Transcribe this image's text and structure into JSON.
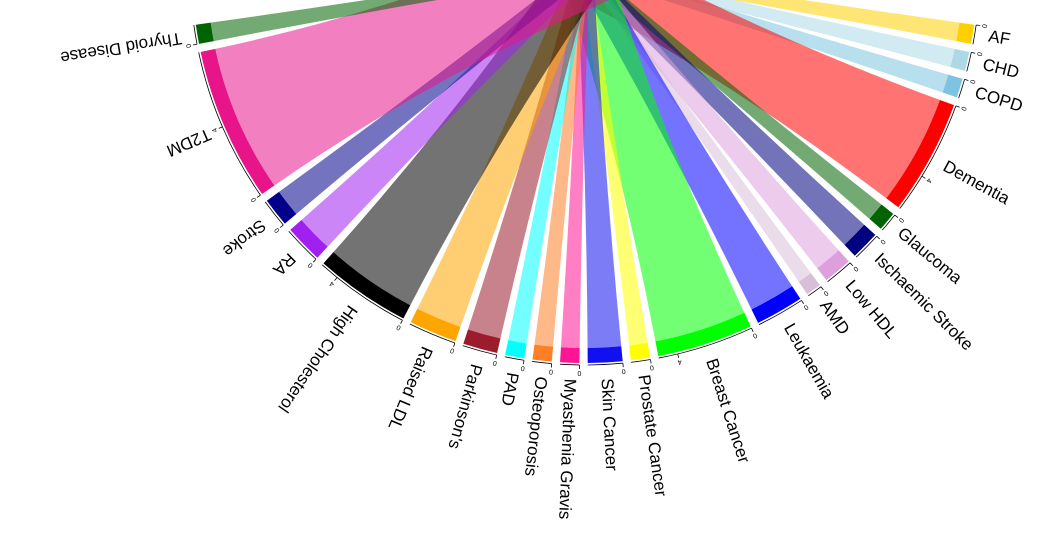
{
  "chart_data": {
    "type": "chord",
    "sectors": [
      {
        "name": "AF",
        "color": "#ffd000",
        "value": 1
      },
      {
        "name": "CHD",
        "color": "#add8e6",
        "value": 1
      },
      {
        "name": "COPD",
        "color": "#7ec4e0",
        "value": 1
      },
      {
        "name": "Dementia",
        "color": "#ff0000",
        "value": 6
      },
      {
        "name": "Glaucoma",
        "color": "#006400",
        "value": 1
      },
      {
        "name": "Ischaemic Stroke",
        "color": "#000080",
        "value": 1.5
      },
      {
        "name": "Low HDL",
        "color": "#dda0dd",
        "value": 1.5
      },
      {
        "name": "AMD",
        "color": "#d8bfd8",
        "value": 0.8
      },
      {
        "name": "Leukaemia",
        "color": "#0000ff",
        "value": 2.5
      },
      {
        "name": "Breast Cancer",
        "color": "#00ff00",
        "value": 5
      },
      {
        "name": "Prostate Cancer",
        "color": "#ffff00",
        "value": 1
      },
      {
        "name": "Skin Cancer",
        "color": "#1010f0",
        "value": 1.8
      },
      {
        "name": "Myasthenia Gravis",
        "color": "#ff1493",
        "value": 1
      },
      {
        "name": "Osteoporosis",
        "color": "#ff7f27",
        "value": 1
      },
      {
        "name": "PAD",
        "color": "#00ffff",
        "value": 1
      },
      {
        "name": "Parkinson's",
        "color": "#9b1c2c",
        "value": 1.8
      },
      {
        "name": "Raised LDL",
        "color": "#ffa500",
        "value": 2.5
      },
      {
        "name": "High Cholesterol",
        "color": "#000000",
        "value": 5
      },
      {
        "name": "RA",
        "color": "#a020f0",
        "value": 2
      },
      {
        "name": "Stroke",
        "color": "#00008b",
        "value": 1.5
      },
      {
        "name": "T2DM",
        "color": "#e8158a",
        "value": 8
      },
      {
        "name": "Thyroid Disease",
        "color": "#006400",
        "value": 1
      }
    ],
    "sector_ticks": [
      0,
      4
    ]
  }
}
